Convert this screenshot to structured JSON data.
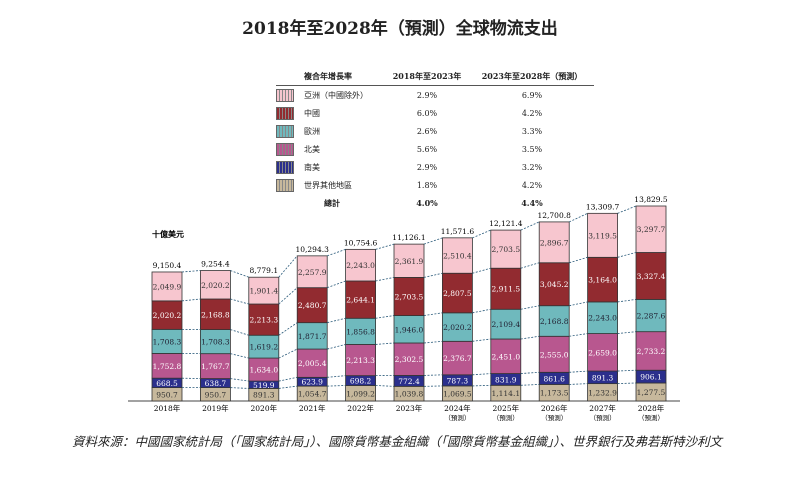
{
  "title": "2018年至2028年（預測）全球物流支出",
  "legend": {
    "headers": [
      "複合年增長率",
      "2018年至2023年",
      "2023年至2028年（預測）"
    ],
    "rows": [
      {
        "name": "亞洲（中國除外）",
        "cagr1": "2.9%",
        "cagr2": "6.9%",
        "color": "#f7c6cf"
      },
      {
        "name": "中國",
        "cagr1": "6.0%",
        "cagr2": "4.2%",
        "color": "#922b30"
      },
      {
        "name": "歐洲",
        "cagr1": "2.6%",
        "cagr2": "3.3%",
        "color": "#6fb9bd"
      },
      {
        "name": "北美",
        "cagr1": "5.6%",
        "cagr2": "3.5%",
        "color": "#b8578f"
      },
      {
        "name": "南美",
        "cagr1": "2.9%",
        "cagr2": "3.2%",
        "color": "#2b2f8c"
      },
      {
        "name": "世界其他地區",
        "cagr1": "1.8%",
        "cagr2": "4.2%",
        "color": "#c7b89c"
      }
    ],
    "total": {
      "name": "總計",
      "cagr1": "4.0%",
      "cagr2": "4.4%"
    }
  },
  "chart_data": {
    "type": "bar",
    "stacked": true,
    "ylabel": "十億美元",
    "categories": [
      "2018年",
      "2019年",
      "2020年",
      "2021年",
      "2022年",
      "2023年",
      "2024年",
      "2025年",
      "2026年",
      "2027年",
      "2028年"
    ],
    "forecast_note": "（預測）",
    "forecast_from": "2024年",
    "series": [
      {
        "name": "世界其他地區",
        "values": [
          950.7,
          950.7,
          891.3,
          1054.7,
          1099.2,
          1039.8,
          1069.5,
          1114.1,
          1173.5,
          1232.9,
          1277.5
        ],
        "labels": [
          "950.7",
          "950.7",
          "891.3",
          "1,054.7",
          "1,099.2",
          "1,039.8",
          "1,069.5",
          "1,114.1",
          "1,173.5",
          "1,232.9",
          "1,277.5"
        ]
      },
      {
        "name": "南美",
        "values": [
          668.5,
          638.7,
          519.9,
          623.9,
          698.2,
          772.4,
          787.3,
          831.9,
          861.6,
          891.3,
          906.1
        ],
        "labels": [
          "668.5",
          "638.7",
          "519.9",
          "623.9",
          "698.2",
          "772.4",
          "787.3",
          "831.9",
          "861.6",
          "891.3",
          "906.1"
        ]
      },
      {
        "name": "北美",
        "values": [
          1752.8,
          1767.7,
          1634.0,
          2005.4,
          2213.3,
          2302.5,
          2376.7,
          2451.0,
          2555.0,
          2659.0,
          2733.2
        ],
        "labels": [
          "1,752.8",
          "1,767.7",
          "1,634.0",
          "2,005.4",
          "2,213.3",
          "2,302.5",
          "2,376.7",
          "2,451.0",
          "2,555.0",
          "2,659.0",
          "2,733.2"
        ]
      },
      {
        "name": "歐洲",
        "values": [
          1708.3,
          1708.3,
          1619.2,
          1871.7,
          1856.8,
          1946.0,
          2020.2,
          2109.4,
          2168.8,
          2243.0,
          2287.6
        ],
        "labels": [
          "1,708.3",
          "1,708.3",
          "1,619.2",
          "1,871.7",
          "1,856.8",
          "1,946.0",
          "2,020.2",
          "2,109.4",
          "2,168.8",
          "2,243.0",
          "2,287.6"
        ]
      },
      {
        "name": "中國",
        "values": [
          2020.2,
          2168.8,
          2213.3,
          2480.7,
          2644.1,
          2703.5,
          2807.5,
          2911.5,
          3045.2,
          3164.0,
          3327.4
        ],
        "labels": [
          "2,020.2",
          "2,168.8",
          "2,213.3",
          "2,480.7",
          "2,644.1",
          "2,703.5",
          "2,807.5",
          "2,911.5",
          "3,045.2",
          "3,164.0",
          "3,327.4"
        ]
      },
      {
        "name": "亞洲（中國除外）",
        "values": [
          2049.9,
          2020.2,
          1901.4,
          2257.9,
          2243.0,
          2361.9,
          2510.4,
          2703.5,
          2896.7,
          3119.5,
          3297.7
        ],
        "labels": [
          "2,049.9",
          "2,020.2",
          "1,901.4",
          "2,257.9",
          "2,243.0",
          "2,361.9",
          "2,510.4",
          "2,703.5",
          "2,896.7",
          "3,119.5",
          "3,297.7"
        ]
      }
    ],
    "totals": [
      "9,150.4",
      "9,254.4",
      "8,779.1",
      "10,294.3",
      "10,754.6",
      "11,126.1",
      "11,571.6",
      "12,121.4",
      "12,700.8",
      "13,309.7",
      "13,829.5"
    ],
    "colors": [
      "#c7b89c",
      "#2b2f8c",
      "#b8578f",
      "#6fb9bd",
      "#922b30",
      "#f7c6cf"
    ],
    "label_colors": [
      "#333",
      "#fff",
      "#fff",
      "#223",
      "#fff",
      "#333"
    ]
  },
  "source": "資料來源：中國國家統計局（「國家統計局」）、國際貨幣基金組織（「國際貨幣基金組織」）、世界銀行及弗若斯特沙利文"
}
